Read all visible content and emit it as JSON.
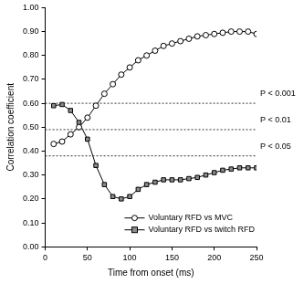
{
  "chart_data": {
    "type": "line",
    "x_label": "Time from onset (ms)",
    "y_label": "Correlation coefficient",
    "x": [
      10,
      20,
      30,
      40,
      50,
      60,
      70,
      80,
      90,
      100,
      110,
      120,
      130,
      140,
      150,
      160,
      170,
      180,
      190,
      200,
      210,
      220,
      230,
      240,
      250
    ],
    "series": [
      {
        "name": "Voluntary RFD vs MVC",
        "color": "#000000",
        "marker": "circle",
        "values": [
          0.43,
          0.44,
          0.47,
          0.5,
          0.54,
          0.59,
          0.64,
          0.68,
          0.72,
          0.75,
          0.78,
          0.8,
          0.82,
          0.84,
          0.85,
          0.86,
          0.87,
          0.88,
          0.885,
          0.89,
          0.895,
          0.9,
          0.9,
          0.9,
          0.89
        ]
      },
      {
        "name": "Voluntary RFD vs twitch RFD",
        "color": "#8c8c8c",
        "marker": "square",
        "values": [
          0.59,
          0.595,
          0.57,
          0.52,
          0.45,
          0.34,
          0.26,
          0.21,
          0.2,
          0.21,
          0.24,
          0.26,
          0.27,
          0.28,
          0.28,
          0.28,
          0.285,
          0.29,
          0.3,
          0.31,
          0.32,
          0.325,
          0.33,
          0.33,
          0.33
        ]
      }
    ],
    "reference_lines": [
      {
        "value": 0.6,
        "label": "P < 0.001"
      },
      {
        "value": 0.49,
        "label": "P < 0.01"
      },
      {
        "value": 0.38,
        "label": "P < 0.05"
      }
    ],
    "xlim": [
      0,
      250
    ],
    "xticks": [
      0,
      50,
      100,
      150,
      200,
      250
    ],
    "ylim": [
      0,
      1
    ],
    "yticks": [
      {
        "value": 0,
        "label": "0.00"
      },
      {
        "value": 0.1,
        "label": "0.10"
      },
      {
        "value": 0.2,
        "label": "0.20"
      },
      {
        "value": 0.3,
        "label": "0.30"
      },
      {
        "value": 0.4,
        "label": "0.40"
      },
      {
        "value": 0.5,
        "label": "0.50"
      },
      {
        "value": 0.6,
        "label": "0.60"
      },
      {
        "value": 0.7,
        "label": "0.70"
      },
      {
        "value": 0.8,
        "label": "0.80"
      },
      {
        "value": 0.9,
        "label": "0.90"
      },
      {
        "value": 1,
        "label": "1.00"
      }
    ],
    "grid": false,
    "legend": "lower right"
  }
}
